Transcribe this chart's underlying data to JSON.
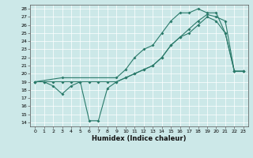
{
  "title": "",
  "xlabel": "Humidex (Indice chaleur)",
  "bg_color": "#cce8e8",
  "line_color": "#2a7a6a",
  "xlim": [
    -0.5,
    23.5
  ],
  "ylim": [
    13.5,
    28.5
  ],
  "xticks": [
    0,
    1,
    2,
    3,
    4,
    5,
    6,
    7,
    8,
    9,
    10,
    11,
    12,
    13,
    14,
    15,
    16,
    17,
    18,
    19,
    20,
    21,
    22,
    23
  ],
  "yticks": [
    14,
    15,
    16,
    17,
    18,
    19,
    20,
    21,
    22,
    23,
    24,
    25,
    26,
    27,
    28
  ],
  "line1_x": [
    0,
    1,
    2,
    3,
    4,
    5,
    6,
    7,
    8,
    9,
    10,
    11,
    12,
    13,
    14,
    15,
    16,
    17,
    18,
    19,
    20,
    21,
    22,
    23
  ],
  "line1_y": [
    19,
    19,
    18.5,
    17.5,
    18.5,
    19,
    14.2,
    14.2,
    18.2,
    19,
    19.5,
    20,
    20.5,
    21,
    22,
    23.5,
    24.5,
    25,
    26,
    27,
    26.5,
    25,
    20.3,
    20.3
  ],
  "line2_x": [
    0,
    1,
    2,
    3,
    4,
    5,
    6,
    7,
    8,
    9,
    10,
    11,
    12,
    13,
    14,
    15,
    16,
    17,
    18,
    19,
    20,
    21,
    22,
    23
  ],
  "line2_y": [
    19,
    19,
    19,
    19,
    19,
    19,
    19,
    19,
    19,
    19,
    19.5,
    20,
    20.5,
    21,
    22,
    23.5,
    24.5,
    25.5,
    26.5,
    27.3,
    27,
    26.5,
    20.3,
    20.3
  ],
  "line3_x": [
    0,
    3,
    9,
    10,
    11,
    12,
    13,
    14,
    15,
    16,
    17,
    18,
    19,
    20,
    21,
    22,
    23
  ],
  "line3_y": [
    19,
    19.5,
    19.5,
    20.5,
    22,
    23,
    23.5,
    25,
    26.5,
    27.5,
    27.5,
    28,
    27.5,
    27.5,
    25,
    20.3,
    20.3
  ]
}
